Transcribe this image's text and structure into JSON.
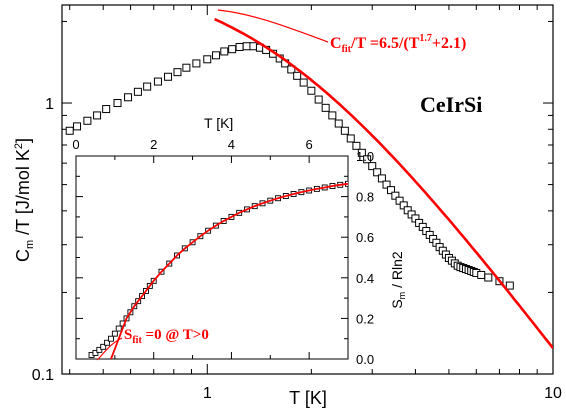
{
  "chart_data": [
    {
      "type": "scatter",
      "panel": "main",
      "xlabel": "T [K]",
      "ylabel": "C_m /T [J/mol K^2]",
      "xscale": "log",
      "yscale": "log",
      "xlim": [
        0.38,
        10
      ],
      "ylim": [
        0.1,
        2.3
      ],
      "x_ticks": [
        {
          "value": 1,
          "label": "1"
        },
        {
          "value": 10,
          "label": "10"
        }
      ],
      "y_ticks": [
        {
          "value": 0.1,
          "label": "0.1"
        },
        {
          "value": 1,
          "label": "1"
        }
      ],
      "compound_label": "CeIrSi",
      "fit_annotation": {
        "main": "C",
        "sub": "fit",
        "mid": "/T =6.5/(T",
        "sup": "1.7",
        "end": "+2.1)"
      },
      "series": [
        {
          "marker": "open-square",
          "color": "#000000",
          "x": [
            0.4,
            0.42,
            0.45,
            0.48,
            0.51,
            0.55,
            0.59,
            0.63,
            0.67,
            0.72,
            0.77,
            0.82,
            0.87,
            0.93,
            1.0,
            1.06,
            1.12,
            1.18,
            1.24,
            1.3,
            1.36,
            1.42,
            1.48,
            1.55,
            1.62,
            1.68,
            1.75,
            1.82,
            1.9,
            2.0,
            2.1,
            2.2,
            2.3,
            2.4,
            2.5,
            2.6,
            2.7,
            2.8,
            2.9,
            3.0,
            3.1,
            3.2,
            3.3,
            3.4,
            3.5,
            3.6,
            3.7,
            3.8,
            3.9,
            4.0,
            4.1,
            4.2,
            4.3,
            4.4,
            4.5,
            4.6,
            4.7,
            4.8,
            4.9,
            5.0,
            5.1,
            5.2,
            5.3,
            5.4,
            5.5,
            5.6,
            5.7,
            5.8,
            5.9,
            6.0,
            6.2,
            6.5,
            7.0,
            7.5
          ],
          "y": [
            0.79,
            0.82,
            0.86,
            0.9,
            0.95,
            1.0,
            1.05,
            1.1,
            1.15,
            1.2,
            1.25,
            1.3,
            1.35,
            1.4,
            1.45,
            1.5,
            1.55,
            1.58,
            1.61,
            1.62,
            1.62,
            1.6,
            1.57,
            1.52,
            1.46,
            1.4,
            1.33,
            1.26,
            1.19,
            1.11,
            1.03,
            0.96,
            0.9,
            0.84,
            0.79,
            0.74,
            0.695,
            0.655,
            0.62,
            0.585,
            0.555,
            0.527,
            0.5,
            0.477,
            0.455,
            0.436,
            0.419,
            0.402,
            0.388,
            0.375,
            0.361,
            0.349,
            0.337,
            0.326,
            0.315,
            0.305,
            0.294,
            0.285,
            0.276,
            0.268,
            0.262,
            0.256,
            0.251,
            0.248,
            0.246,
            0.244,
            0.242,
            0.24,
            0.238,
            0.236,
            0.232,
            0.227,
            0.22,
            0.212
          ]
        }
      ],
      "fit_line": {
        "color": "#ff0000",
        "formula_A": 6.5,
        "formula_n": 1.7,
        "formula_B": 2.1,
        "x_range": [
          1.05,
          10
        ]
      }
    },
    {
      "type": "scatter",
      "panel": "inset",
      "xlabel": "T  [K]",
      "ylabel": "S_m / Rln2",
      "xlim": [
        0,
        7
      ],
      "ylim": [
        0,
        1.0
      ],
      "x_ticks": [
        {
          "value": 0,
          "label": "0"
        },
        {
          "value": 2,
          "label": "2"
        },
        {
          "value": 4,
          "label": "4"
        },
        {
          "value": 6,
          "label": "6"
        }
      ],
      "y_ticks": [
        {
          "value": 0.0,
          "label": "0.0"
        },
        {
          "value": 0.2,
          "label": "0.2"
        },
        {
          "value": 0.4,
          "label": "0.4"
        },
        {
          "value": 0.6,
          "label": "0.6"
        },
        {
          "value": 0.8,
          "label": "0.8"
        },
        {
          "value": 1.0,
          "label": "1.0"
        }
      ],
      "fit_annotation": {
        "main": "S",
        "sub": "fit",
        "end": " =0 @ T>0"
      },
      "series": [
        {
          "marker": "open-square",
          "color": "#000000",
          "x": [
            0.4,
            0.5,
            0.6,
            0.7,
            0.8,
            0.9,
            1.0,
            1.1,
            1.2,
            1.3,
            1.4,
            1.5,
            1.6,
            1.7,
            1.8,
            1.9,
            2.0,
            2.2,
            2.4,
            2.6,
            2.8,
            3.0,
            3.2,
            3.4,
            3.6,
            3.8,
            4.0,
            4.2,
            4.4,
            4.6,
            4.8,
            5.0,
            5.2,
            5.4,
            5.6,
            5.8,
            6.0,
            6.2,
            6.4,
            6.6,
            6.8,
            7.0
          ],
          "y": [
            0.02,
            0.03,
            0.045,
            0.06,
            0.08,
            0.1,
            0.125,
            0.15,
            0.175,
            0.2,
            0.23,
            0.26,
            0.285,
            0.31,
            0.335,
            0.36,
            0.385,
            0.43,
            0.47,
            0.51,
            0.545,
            0.575,
            0.605,
            0.632,
            0.657,
            0.68,
            0.7,
            0.72,
            0.737,
            0.753,
            0.767,
            0.78,
            0.792,
            0.803,
            0.813,
            0.822,
            0.83,
            0.838,
            0.845,
            0.852,
            0.858,
            0.863
          ]
        }
      ],
      "fit_line": {
        "color": "#ff0000",
        "x_range": [
          0.9,
          7.0
        ]
      }
    }
  ]
}
